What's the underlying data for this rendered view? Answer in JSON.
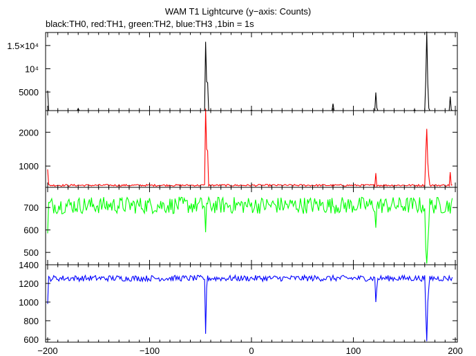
{
  "title": "WAM T1 Lightcurve (y−axis: Counts)",
  "subtitle": "black:TH0, red:TH1, green:TH2, blue:TH3 ,1bin = 1s",
  "chart_data": [
    {
      "type": "line",
      "series_name": "TH0",
      "color": "#000000",
      "xlim": [
        -202,
        202
      ],
      "ylim": [
        1000,
        17800
      ],
      "yticks": [
        5000,
        10000,
        15000
      ],
      "yticklabels": [
        "5000",
        "10⁴",
        "1.5×10⁴"
      ],
      "baseline": 700,
      "noise": 130,
      "events": [
        [
          -200,
          5300
        ],
        [
          -170,
          1450
        ],
        [
          -45,
          15800
        ],
        [
          -44,
          7200
        ],
        [
          -43,
          7000
        ],
        [
          0,
          1100
        ],
        [
          80,
          2500
        ],
        [
          122,
          4900
        ],
        [
          123,
          1600
        ],
        [
          160,
          1200
        ],
        [
          172,
          18000
        ],
        [
          171,
          7500
        ],
        [
          173,
          6800
        ],
        [
          174,
          1500
        ],
        [
          195,
          4000
        ],
        [
          196,
          1200
        ]
      ]
    },
    {
      "type": "line",
      "series_name": "TH1",
      "color": "#ff0000",
      "xlim": [
        -202,
        202
      ],
      "ylim": [
        370,
        2640
      ],
      "yticks": [
        1000,
        2000
      ],
      "yticklabels": [
        "1000",
        "2000"
      ],
      "baseline": 430,
      "noise": 28,
      "events": [
        [
          -200,
          900
        ],
        [
          -45,
          2700
        ],
        [
          -44,
          1500
        ],
        [
          -43,
          1450
        ],
        [
          122,
          790
        ],
        [
          172,
          2100
        ],
        [
          171,
          1350
        ],
        [
          173,
          1100
        ],
        [
          174,
          700
        ],
        [
          195,
          820
        ]
      ]
    },
    {
      "type": "line",
      "series_name": "TH2",
      "color": "#00ff00",
      "xlim": [
        -202,
        202
      ],
      "ylim": [
        445,
        790
      ],
      "yticks": [
        500,
        600,
        700
      ],
      "yticklabels": [
        "500",
        "600",
        "700"
      ],
      "baseline": 710,
      "noise": 38,
      "events": [
        [
          -200,
          585
        ],
        [
          -45,
          590
        ],
        [
          122,
          610
        ],
        [
          172,
          450
        ],
        [
          171,
          520
        ],
        [
          173,
          540
        ],
        [
          174,
          620
        ]
      ]
    },
    {
      "type": "line",
      "series_name": "TH3",
      "color": "#0000ff",
      "xlim": [
        -202,
        202
      ],
      "ylim": [
        570,
        1400
      ],
      "yticks": [
        600,
        800,
        1000,
        1200,
        1400
      ],
      "yticklabels": [
        "600",
        "800",
        "1000",
        "1200",
        "1400"
      ],
      "baseline": 1255,
      "noise": 32,
      "events": [
        [
          -200,
          980
        ],
        [
          -45,
          660
        ],
        [
          -44,
          1150
        ],
        [
          122,
          1000
        ],
        [
          123,
          1150
        ],
        [
          172,
          580
        ],
        [
          171,
          900
        ],
        [
          173,
          1000
        ],
        [
          174,
          1150
        ]
      ],
      "xticks": [
        -200,
        -100,
        0,
        100,
        200
      ],
      "xticklabels": [
        "−200",
        "−100",
        "0",
        "100",
        "200"
      ]
    }
  ]
}
